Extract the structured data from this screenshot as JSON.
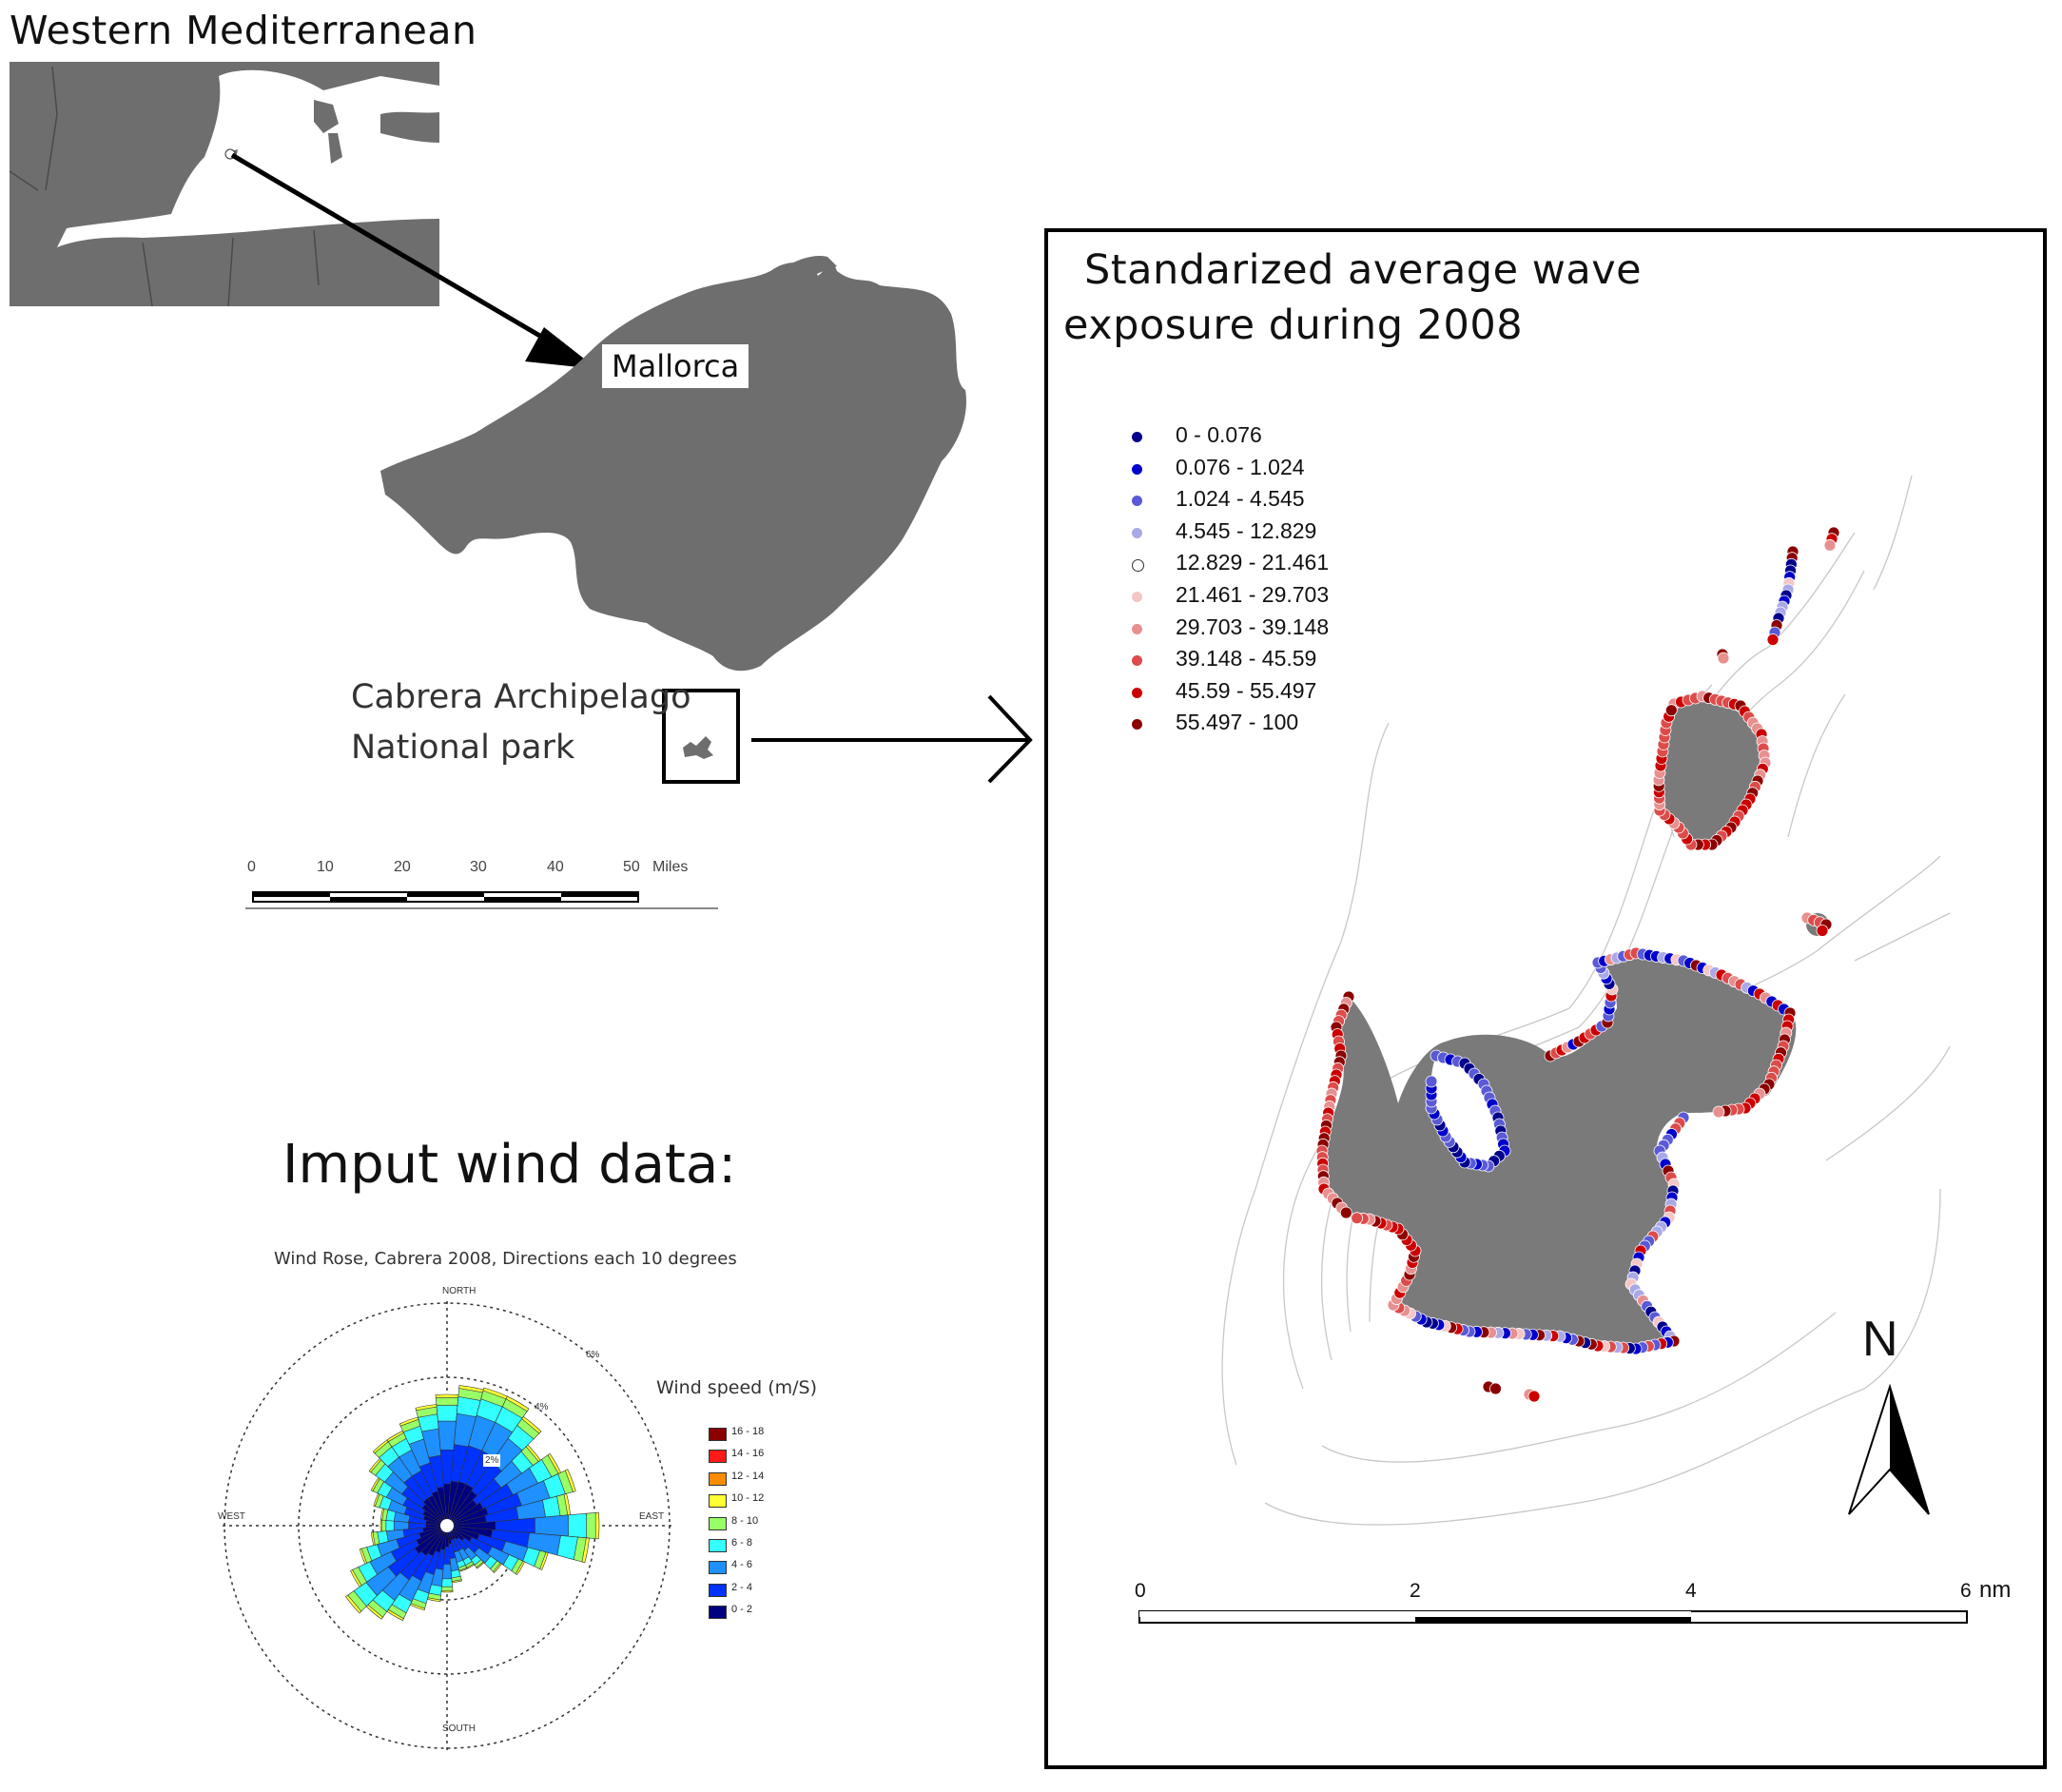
{
  "region_title": "Western Mediterranean",
  "mallorca_label": "Mallorca",
  "cabrera_label": [
    "Cabrera Archipelago",
    "National park"
  ],
  "miles_scale": {
    "ticks": [
      "0",
      "10",
      "20",
      "30",
      "40",
      "50"
    ],
    "unit": "Miles"
  },
  "wind": {
    "heading": "Imput wind data:",
    "rose_title": "Wind Rose, Cabrera 2008, Directions each 10  degrees",
    "directions": [
      "NORTH",
      "EAST",
      "SOUTH",
      "WEST"
    ],
    "rings": [
      "2%",
      "4%",
      "6%"
    ],
    "speed_title": "Wind speed (m/S)",
    "speed_bins": [
      {
        "label": "16 - 18",
        "color": "#8b0000"
      },
      {
        "label": "14 - 16",
        "color": "#ff1a1a"
      },
      {
        "label": "12 - 14",
        "color": "#ff8c00"
      },
      {
        "label": "10 - 12",
        "color": "#ffff33"
      },
      {
        "label": "8 - 10",
        "color": "#99ff66"
      },
      {
        "label": "6 - 8",
        "color": "#33ffff"
      },
      {
        "label": "4 - 6",
        "color": "#1e90ff"
      },
      {
        "label": "2 - 4",
        "color": "#0033ff"
      },
      {
        "label": "0 - 2",
        "color": "#000080"
      }
    ]
  },
  "exposure_map": {
    "title_line1": "Standarized average wave",
    "title_line2": "exposure during 2008",
    "legend": [
      {
        "label": "0 - 0.076",
        "color": "#00008b"
      },
      {
        "label": "0.076 - 1.024",
        "color": "#0000cd"
      },
      {
        "label": "1.024 - 4.545",
        "color": "#5a5ad6"
      },
      {
        "label": "4.545 - 12.829",
        "color": "#a9a9e8"
      },
      {
        "label": "12.829 - 21.461",
        "color": "#ffffff"
      },
      {
        "label": "21.461 - 29.703",
        "color": "#f4c6c6"
      },
      {
        "label": "29.703 - 39.148",
        "color": "#e89090"
      },
      {
        "label": "39.148 - 45.59",
        "color": "#dd4b4b"
      },
      {
        "label": "45.59 - 55.497",
        "color": "#cc0000"
      },
      {
        "label": "55.497 - 100",
        "color": "#8b0000"
      }
    ],
    "north_label": "N",
    "scale_ticks": [
      "0",
      "2",
      "4",
      "6"
    ],
    "scale_unit": "nm"
  }
}
